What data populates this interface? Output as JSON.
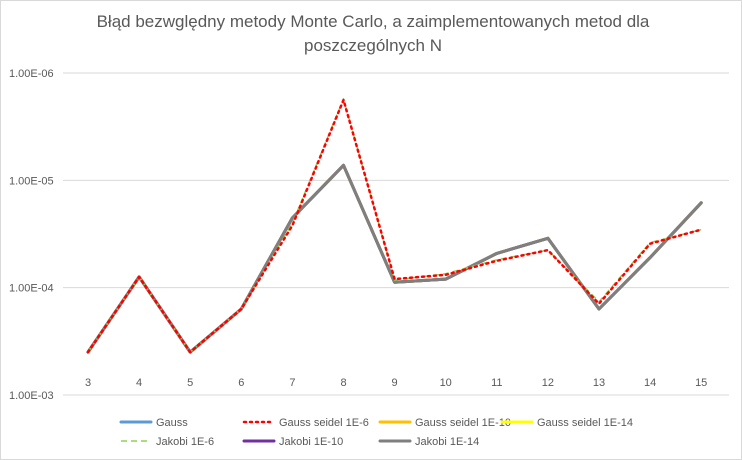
{
  "chart_data": {
    "type": "line",
    "title": [
      "Błąd bezwględny metody Monte Carlo, a zaimplementowanych metod dla",
      "poszczególnych N"
    ],
    "y_scale": "log",
    "y_axis_reversed": true,
    "ylim": [
      0.001,
      1e-06
    ],
    "y_ticks": [
      {
        "value": 1e-06,
        "label": "1.00E-06"
      },
      {
        "value": 1e-05,
        "label": "1.00E-05"
      },
      {
        "value": 0.0001,
        "label": "1.00E-04"
      },
      {
        "value": 0.001,
        "label": "1.00E-03"
      }
    ],
    "categories": [
      "3",
      "4",
      "5",
      "6",
      "7",
      "8",
      "9",
      "10",
      "11",
      "12",
      "13",
      "14",
      "15"
    ],
    "grid": true,
    "legend_position": "bottom",
    "series": [
      {
        "name": "Gauss",
        "color": "#5b9bd5",
        "dash": "solid",
        "values": [
          0.000398,
          7.94e-05,
          0.000398,
          0.000158,
          2.24e-05,
          7.24e-06,
          8.91e-05,
          8.32e-05,
          4.79e-05,
          3.47e-05,
          0.000158,
          5.25e-05,
          1.62e-05
        ]
      },
      {
        "name": "Gauss seidel 1E-6",
        "color": "#ff0000",
        "dash": "dot",
        "values": [
          0.000398,
          7.94e-05,
          0.000398,
          0.000158,
          2.63e-05,
          1.78e-06,
          8.32e-05,
          7.59e-05,
          5.62e-05,
          4.47e-05,
          0.000141,
          3.89e-05,
          2.88e-05
        ]
      },
      {
        "name": "Gauss seidel 1E-10",
        "color": "#ffc000",
        "dash": "solid",
        "values": [
          0.000398,
          7.94e-05,
          0.000398,
          0.000158,
          2.24e-05,
          7.24e-06,
          8.91e-05,
          8.32e-05,
          4.79e-05,
          3.47e-05,
          0.000158,
          5.25e-05,
          1.62e-05
        ]
      },
      {
        "name": "Gauss seidel 1E-14",
        "color": "#ffff00",
        "dash": "solid",
        "values": [
          0.000398,
          7.94e-05,
          0.000398,
          0.000158,
          2.24e-05,
          7.24e-06,
          8.91e-05,
          8.32e-05,
          4.79e-05,
          3.47e-05,
          0.000158,
          5.25e-05,
          1.62e-05
        ]
      },
      {
        "name": "Jakobi 1E-6",
        "color": "#92d050",
        "dash": "dash",
        "values": [
          0.000398,
          7.94e-05,
          0.000398,
          0.000158,
          2.51e-05,
          1.74e-06,
          8.51e-05,
          7.41e-05,
          5.5e-05,
          4.47e-05,
          0.000135,
          3.8e-05,
          2.88e-05
        ]
      },
      {
        "name": "Jakobi 1E-10",
        "color": "#7030a0",
        "dash": "solid",
        "values": [
          0.000398,
          7.94e-05,
          0.000398,
          0.000158,
          2.24e-05,
          7.24e-06,
          8.91e-05,
          8.32e-05,
          4.79e-05,
          3.47e-05,
          0.000158,
          5.25e-05,
          1.62e-05
        ]
      },
      {
        "name": "Jakobi 1E-14",
        "color": "#7f7f7f",
        "dash": "solid",
        "values": [
          0.000398,
          7.94e-05,
          0.000398,
          0.000158,
          2.24e-05,
          7.24e-06,
          8.91e-05,
          8.32e-05,
          4.79e-05,
          3.47e-05,
          0.000158,
          5.25e-05,
          1.62e-05
        ]
      }
    ]
  }
}
